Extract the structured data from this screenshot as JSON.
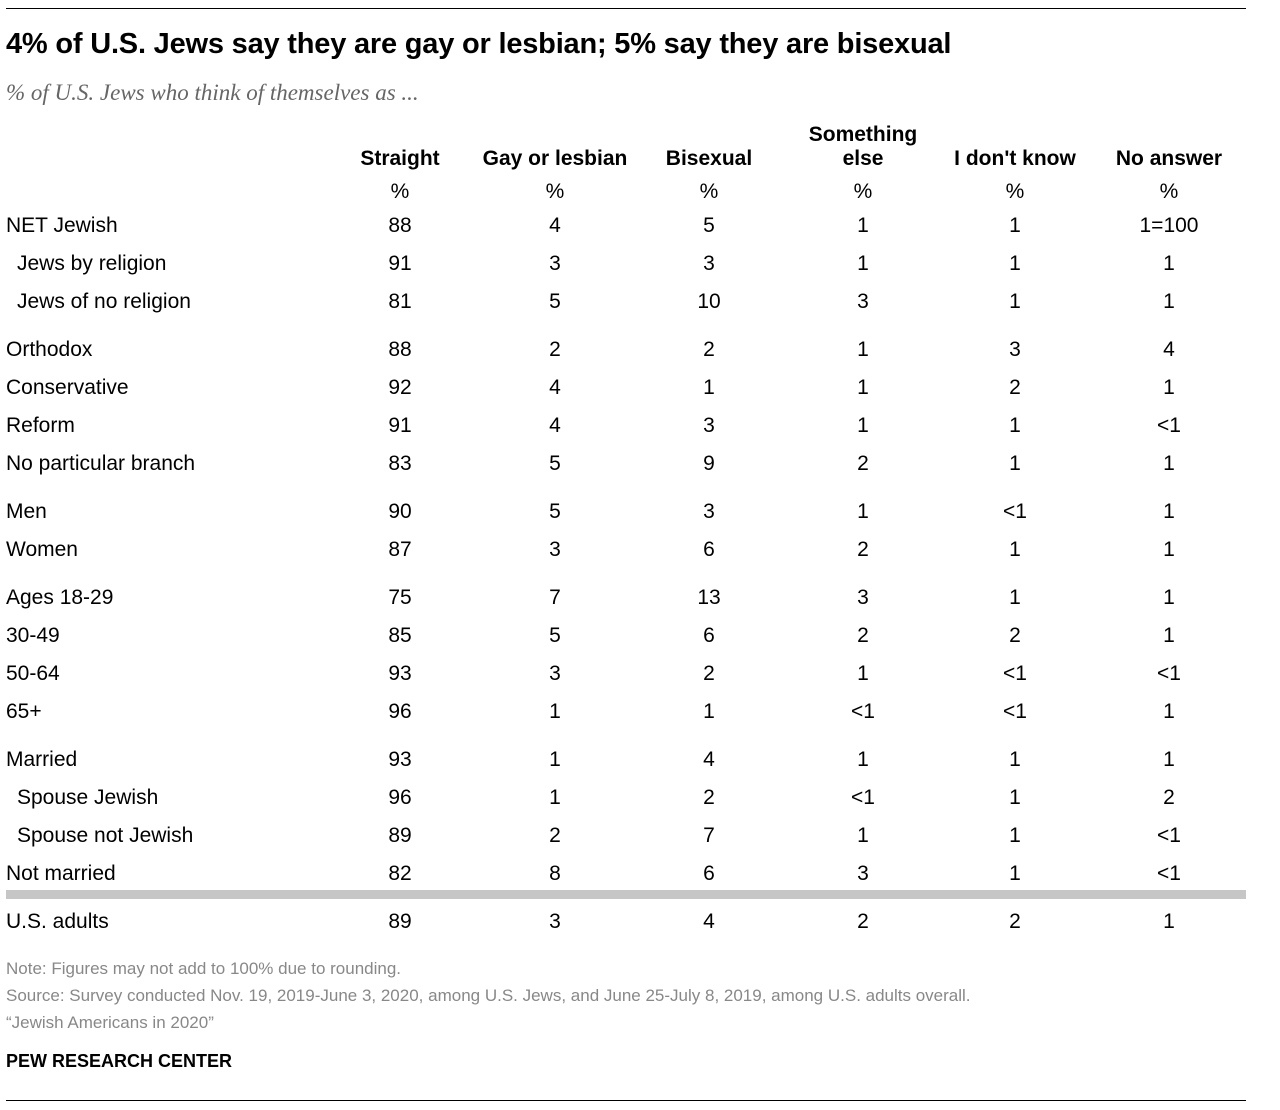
{
  "title": "4% of U.S. Jews say they are gay or lesbian; 5% say they are bisexual",
  "subtitle": "% of U.S. Jews who think of themselves as ...",
  "columns": [
    "Straight",
    "Gay or lesbian",
    "Bisexual",
    "Something else",
    "I don't know",
    "No answer"
  ],
  "pct_symbol": "%",
  "rows": [
    {
      "label": "NET Jewish",
      "values": [
        "88",
        "4",
        "5",
        "1",
        "1",
        "1=100"
      ]
    },
    {
      "label": "Jews by religion",
      "values": [
        "91",
        "3",
        "3",
        "1",
        "1",
        "1"
      ]
    },
    {
      "label": "Jews of no religion",
      "values": [
        "81",
        "5",
        "10",
        "3",
        "1",
        "1"
      ]
    },
    {
      "label": "Orthodox",
      "values": [
        "88",
        "2",
        "2",
        "1",
        "3",
        "4"
      ]
    },
    {
      "label": "Conservative",
      "values": [
        "92",
        "4",
        "1",
        "1",
        "2",
        "1"
      ]
    },
    {
      "label": "Reform",
      "values": [
        "91",
        "4",
        "3",
        "1",
        "1",
        "<1"
      ]
    },
    {
      "label": "No particular branch",
      "values": [
        "83",
        "5",
        "9",
        "2",
        "1",
        "1"
      ]
    },
    {
      "label": "Men",
      "values": [
        "90",
        "5",
        "3",
        "1",
        "<1",
        "1"
      ]
    },
    {
      "label": "Women",
      "values": [
        "87",
        "3",
        "6",
        "2",
        "1",
        "1"
      ]
    },
    {
      "label": "Ages 18-29",
      "values": [
        "75",
        "7",
        "13",
        "3",
        "1",
        "1"
      ]
    },
    {
      "label": "30-49",
      "values": [
        "85",
        "5",
        "6",
        "2",
        "2",
        "1"
      ]
    },
    {
      "label": "50-64",
      "values": [
        "93",
        "3",
        "2",
        "1",
        "<1",
        "<1"
      ]
    },
    {
      "label": "65+",
      "values": [
        "96",
        "1",
        "1",
        "<1",
        "<1",
        "1"
      ]
    },
    {
      "label": "Married",
      "values": [
        "93",
        "1",
        "4",
        "1",
        "1",
        "1"
      ]
    },
    {
      "label": "Spouse Jewish",
      "values": [
        "96",
        "1",
        "2",
        "<1",
        "1",
        "2"
      ]
    },
    {
      "label": "Spouse not Jewish",
      "values": [
        "89",
        "2",
        "7",
        "1",
        "1",
        "<1"
      ]
    },
    {
      "label": "Not married",
      "values": [
        "82",
        "8",
        "6",
        "3",
        "1",
        "<1"
      ]
    },
    {
      "label": "U.S. adults",
      "values": [
        "89",
        "3",
        "4",
        "2",
        "2",
        "1"
      ]
    }
  ],
  "chart_data": {
    "type": "table",
    "title": "4% of U.S. Jews say they are gay or lesbian; 5% say they are bisexual",
    "subtitle": "% of U.S. Jews who think of themselves as ...",
    "columns": [
      "Straight",
      "Gay or lesbian",
      "Bisexual",
      "Something else",
      "I don't know",
      "No answer"
    ],
    "units": "%",
    "categories": [
      "NET Jewish",
      "Jews by religion",
      "Jews of no religion",
      "Orthodox",
      "Conservative",
      "Reform",
      "No particular branch",
      "Men",
      "Women",
      "Ages 18-29",
      "30-49",
      "50-64",
      "65+",
      "Married",
      "Spouse Jewish",
      "Spouse not Jewish",
      "Not married",
      "U.S. adults"
    ],
    "series": [
      {
        "name": "Straight",
        "values": [
          88,
          91,
          81,
          88,
          92,
          91,
          83,
          90,
          87,
          75,
          85,
          93,
          96,
          93,
          96,
          89,
          82,
          89
        ]
      },
      {
        "name": "Gay or lesbian",
        "values": [
          4,
          3,
          5,
          2,
          4,
          4,
          5,
          5,
          3,
          7,
          5,
          3,
          1,
          1,
          1,
          2,
          8,
          3
        ]
      },
      {
        "name": "Bisexual",
        "values": [
          5,
          3,
          10,
          2,
          1,
          3,
          9,
          3,
          6,
          13,
          6,
          2,
          1,
          4,
          2,
          7,
          6,
          4
        ]
      },
      {
        "name": "Something else",
        "values": [
          "1",
          "1",
          "3",
          "1",
          "1",
          "1",
          "2",
          "1",
          "2",
          "3",
          "2",
          "1",
          "<1",
          "1",
          "<1",
          "1",
          "3",
          "2"
        ]
      },
      {
        "name": "I don't know",
        "values": [
          "1",
          "1",
          "1",
          "3",
          "2",
          "1",
          "1",
          "<1",
          "1",
          "1",
          "2",
          "<1",
          "<1",
          "1",
          "1",
          "1",
          "1",
          "2"
        ]
      },
      {
        "name": "No answer",
        "values": [
          "1=100",
          "1",
          "1",
          "4",
          "1",
          "<1",
          "1",
          "1",
          "1",
          "1",
          "1",
          "<1",
          "1",
          "1",
          "2",
          "<1",
          "<1",
          "1"
        ]
      }
    ]
  },
  "notes": {
    "note": "Note: Figures may not add to 100% due to rounding.",
    "source": "Source: Survey conducted Nov. 19, 2019-June 3, 2020, among U.S. Jews, and June 25-July 8, 2019, among U.S. adults overall.",
    "report": "“Jewish Americans in 2020”"
  },
  "footer": "PEW RESEARCH CENTER"
}
